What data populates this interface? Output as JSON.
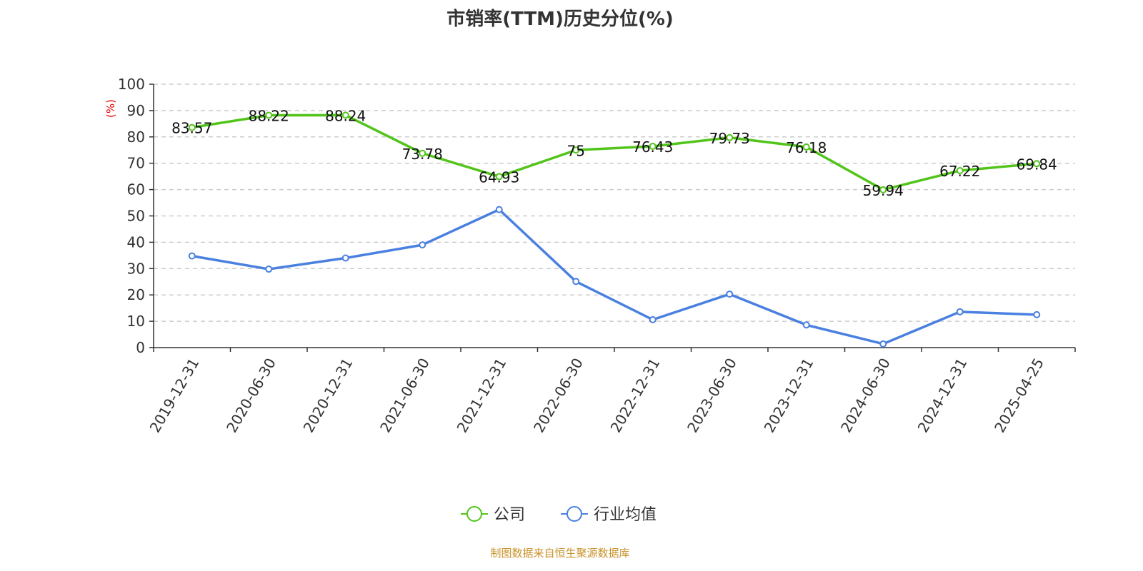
{
  "chart_data": {
    "type": "line",
    "title": "市销率(TTM)历史分位(%)",
    "ylabel": "(%)",
    "xlabel": "",
    "ylim": [
      0,
      100
    ],
    "yticks": [
      0,
      10,
      20,
      30,
      40,
      50,
      60,
      70,
      80,
      90,
      100
    ],
    "grid": true,
    "legend_placement": "bottom",
    "categories": [
      "2019-12-31",
      "2020-06-30",
      "2020-12-31",
      "2021-06-30",
      "2021-12-31",
      "2022-06-30",
      "2022-12-31",
      "2023-06-30",
      "2023-12-31",
      "2024-06-30",
      "2024-12-31",
      "2025-04-25"
    ],
    "series": [
      {
        "name": "公司",
        "color": "#52c41a",
        "show_labels": true,
        "values": [
          83.57,
          88.22,
          88.24,
          73.78,
          64.93,
          75,
          76.43,
          79.73,
          76.18,
          59.94,
          67.22,
          69.84
        ]
      },
      {
        "name": "行业均值",
        "color": "#4a80e0",
        "show_labels": false,
        "values": [
          34.8,
          29.8,
          34.0,
          39.0,
          52.4,
          25.1,
          10.6,
          20.3,
          8.6,
          1.4,
          13.6,
          12.5
        ]
      }
    ]
  },
  "source": "制图数据来自恒生聚源数据库"
}
